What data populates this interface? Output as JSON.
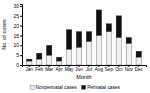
{
  "chart_data": {
    "type": "bar",
    "stacked": true,
    "categories": [
      "Jan",
      "Feb",
      "Mar",
      "Apr",
      "May",
      "Jun",
      "Jul",
      "Aug",
      "Sep",
      "Oct",
      "Nov",
      "Dec"
    ],
    "series": [
      {
        "name": "Nonperinatal cases",
        "color": "#f0f0f0",
        "values": [
          2,
          3,
          5,
          2,
          8,
          9,
          12,
          15,
          17,
          14,
          11,
          4
        ]
      },
      {
        "name": "Perinatal cases",
        "color": "#111111",
        "values": [
          1,
          3,
          5,
          2,
          10,
          8,
          5,
          13,
          4,
          11,
          3,
          3
        ]
      }
    ],
    "xlabel": "Month",
    "ylabel": "No. of cases",
    "ylim": [
      0,
      31
    ],
    "yticks": [
      0,
      5,
      10,
      15,
      20,
      25,
      30
    ],
    "legend": "bottom"
  }
}
